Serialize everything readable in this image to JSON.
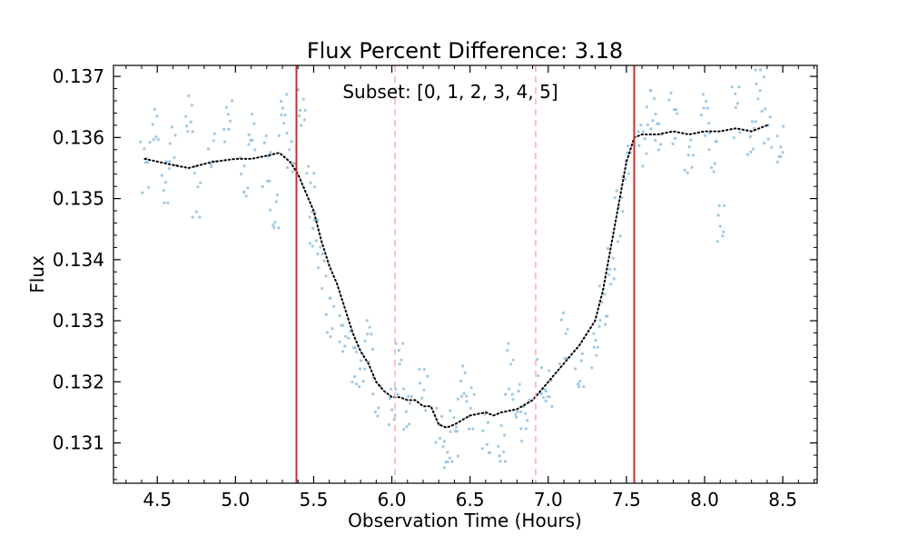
{
  "chart_data": {
    "type": "scatter",
    "title": "Flux Percent Difference: 3.18",
    "xlabel": "Observation Time (Hours)",
    "ylabel": "Flux",
    "annotation": "Subset: [0, 1, 2, 3, 4, 5]",
    "xlim": [
      4.22,
      8.72
    ],
    "ylim": [
      0.13034,
      0.13718
    ],
    "x_ticks": [
      "4.5",
      "5.0",
      "5.5",
      "6.0",
      "6.5",
      "7.0",
      "7.5",
      "8.0",
      "8.5"
    ],
    "y_ticks": [
      "0.131",
      "0.132",
      "0.133",
      "0.134",
      "0.135",
      "0.136",
      "0.137"
    ],
    "grid": false,
    "colors": {
      "scatter": "#8fbfe0",
      "binned": "#000000",
      "ingress_egress": "#d62728",
      "inner_contacts": "#f4b6b6"
    },
    "vertical_lines": [
      {
        "name": "t1",
        "x": 5.39,
        "style": "solid"
      },
      {
        "name": "t2",
        "x": 6.02,
        "style": "dashed"
      },
      {
        "name": "t3",
        "x": 6.92,
        "style": "dashed"
      },
      {
        "name": "t4",
        "x": 7.55,
        "style": "solid"
      }
    ],
    "series": [
      {
        "style": "scatter",
        "sample_x": [
          4.42,
          4.48,
          4.55,
          4.6,
          4.7,
          4.75,
          4.85,
          4.95,
          5.05,
          5.1,
          5.2,
          5.25,
          5.3,
          5.35,
          5.42,
          5.48,
          5.5,
          5.55,
          5.6,
          5.68,
          5.75,
          5.8,
          5.85,
          5.9,
          6.0,
          6.05,
          6.1,
          6.2,
          6.3,
          6.35,
          6.4,
          6.45,
          6.5,
          6.6,
          6.7,
          6.75,
          6.8,
          6.85,
          6.95,
          7.0,
          7.1,
          7.2,
          7.3,
          7.35,
          7.4,
          7.45,
          7.5,
          7.6,
          7.65,
          7.7,
          7.8,
          7.9,
          8.0,
          8.05,
          8.1,
          8.2,
          8.3,
          8.35,
          8.4,
          8.48
        ],
        "sample_y": [
          0.1355,
          0.1361,
          0.1352,
          0.1359,
          0.1363,
          0.1351,
          0.1357,
          0.1362,
          0.1354,
          0.136,
          0.1356,
          0.1347,
          0.1363,
          0.1358,
          0.1364,
          0.1351,
          0.1344,
          0.1338,
          0.1331,
          0.1327,
          0.1324,
          0.1321,
          0.1326,
          0.1318,
          0.1315,
          0.1322,
          0.1314,
          0.1318,
          0.1313,
          0.1308,
          0.1311,
          0.1319,
          0.1315,
          0.1312,
          0.1309,
          0.1322,
          0.1316,
          0.1313,
          0.1321,
          0.1318,
          0.1327,
          0.1321,
          0.1325,
          0.1333,
          0.1338,
          0.1347,
          0.1355,
          0.1358,
          0.1365,
          0.136,
          0.1363,
          0.1356,
          0.1363,
          0.1358,
          0.1345,
          0.1364,
          0.1359,
          0.1367,
          0.1362,
          0.1358
        ],
        "rand_offsets": [
          0.2,
          -0.5,
          0.8,
          -0.1,
          0.4,
          -0.9,
          0.6,
          -0.3,
          0.1,
          0.9,
          -0.7,
          0.3,
          -0.2,
          0.5,
          -0.6,
          0.7,
          0.0,
          -0.4,
          0.85,
          -0.15,
          0.35,
          -0.8,
          0.55,
          -0.25,
          0.15,
          0.95,
          -0.65,
          0.25,
          -0.45,
          0.65
        ]
      },
      {
        "style": "dotted-line",
        "x": [
          4.42,
          4.6,
          4.7,
          4.85,
          5.0,
          5.1,
          5.2,
          5.28,
          5.35,
          5.4,
          5.45,
          5.5,
          5.55,
          5.6,
          5.65,
          5.7,
          5.75,
          5.8,
          5.85,
          5.9,
          5.95,
          6.0,
          6.05,
          6.1,
          6.15,
          6.2,
          6.25,
          6.3,
          6.35,
          6.4,
          6.5,
          6.6,
          6.65,
          6.7,
          6.8,
          6.9,
          7.0,
          7.1,
          7.2,
          7.3,
          7.35,
          7.4,
          7.45,
          7.5,
          7.55,
          7.6,
          7.7,
          7.8,
          7.9,
          8.0,
          8.1,
          8.2,
          8.3,
          8.4
        ],
        "y": [
          0.13565,
          0.13555,
          0.1355,
          0.1356,
          0.13565,
          0.13565,
          0.1357,
          0.13575,
          0.1356,
          0.1354,
          0.1351,
          0.1348,
          0.1343,
          0.1339,
          0.1336,
          0.1332,
          0.1328,
          0.1325,
          0.1323,
          0.132,
          0.13185,
          0.13175,
          0.13175,
          0.1317,
          0.1317,
          0.1316,
          0.1316,
          0.1313,
          0.13125,
          0.1313,
          0.13145,
          0.1315,
          0.13145,
          0.1315,
          0.13155,
          0.1317,
          0.132,
          0.1323,
          0.1326,
          0.133,
          0.1335,
          0.1342,
          0.1349,
          0.1356,
          0.136,
          0.13605,
          0.13605,
          0.1361,
          0.13605,
          0.1361,
          0.1361,
          0.13615,
          0.1361,
          0.1362
        ]
      }
    ]
  }
}
